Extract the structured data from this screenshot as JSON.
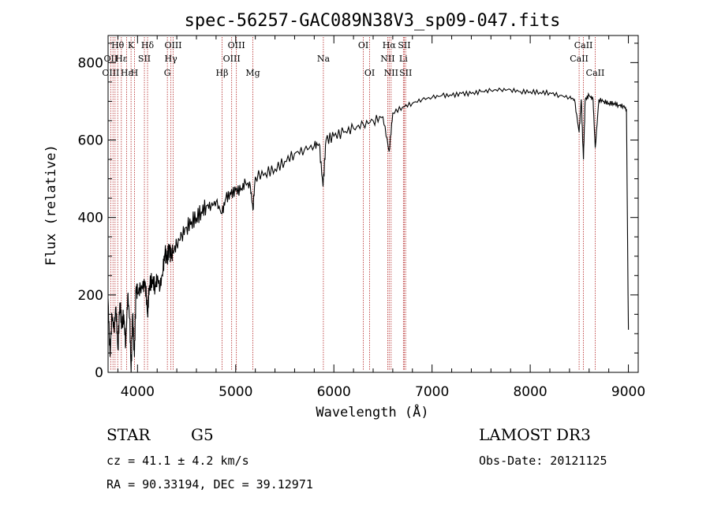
{
  "chart_data": {
    "type": "line",
    "title": "spec-56257-GAC089N38V3_sp09-047.fits",
    "xlabel": "Wavelength (Å)",
    "ylabel": "Flux (relative)",
    "xlim": [
      3700,
      9100
    ],
    "ylim": [
      0,
      870
    ],
    "xticks": [
      4000,
      5000,
      6000,
      7000,
      8000,
      9000
    ],
    "yticks": [
      0,
      200,
      400,
      600,
      800
    ],
    "series": [
      {
        "name": "flux",
        "x": [
          3700,
          3720,
          3740,
          3760,
          3780,
          3800,
          3820,
          3840,
          3860,
          3880,
          3900,
          3920,
          3935,
          3950,
          3968,
          3985,
          4000,
          4030,
          4060,
          4080,
          4102,
          4120,
          4150,
          4180,
          4200,
          4230,
          4260,
          4280,
          4300,
          4320,
          4340,
          4360,
          4400,
          4450,
          4500,
          4550,
          4600,
          4650,
          4700,
          4750,
          4800,
          4861,
          4900,
          4950,
          5000,
          5050,
          5100,
          5150,
          5175,
          5200,
          5300,
          5400,
          5500,
          5600,
          5700,
          5800,
          5850,
          5890,
          5920,
          6000,
          6100,
          6200,
          6300,
          6400,
          6500,
          6563,
          6600,
          6700,
          6800,
          6900,
          7000,
          7100,
          7200,
          7300,
          7400,
          7500,
          7600,
          7700,
          7800,
          7900,
          8000,
          8100,
          8200,
          8300,
          8400,
          8450,
          8498,
          8520,
          8542,
          8560,
          8600,
          8640,
          8662,
          8700,
          8750,
          8800,
          8850,
          8900,
          8950,
          8980,
          9000
        ],
        "values": [
          190,
          40,
          150,
          110,
          170,
          60,
          180,
          120,
          150,
          70,
          200,
          140,
          0,
          150,
          40,
          220,
          205,
          215,
          225,
          230,
          150,
          225,
          240,
          220,
          245,
          220,
          265,
          310,
          290,
          320,
          300,
          310,
          330,
          355,
          375,
          390,
          400,
          415,
          430,
          430,
          440,
          410,
          450,
          460,
          470,
          470,
          490,
          480,
          420,
          505,
          515,
          525,
          545,
          565,
          575,
          585,
          590,
          480,
          600,
          610,
          620,
          630,
          640,
          650,
          660,
          570,
          670,
          685,
          695,
          705,
          710,
          715,
          715,
          720,
          720,
          725,
          728,
          730,
          730,
          725,
          725,
          723,
          722,
          715,
          710,
          705,
          620,
          705,
          550,
          705,
          715,
          705,
          580,
          705,
          700,
          695,
          695,
          690,
          688,
          680,
          110
        ]
      }
    ],
    "line_ids": [
      {
        "label": "Hθ",
        "wl": 3798,
        "row": 1
      },
      {
        "label": "OII",
        "wl": 3727,
        "row": 2
      },
      {
        "label": "OIII",
        "wl": 3727,
        "row": 3
      },
      {
        "label": "K",
        "wl": 3934,
        "row": 1
      },
      {
        "label": "Hε",
        "wl": 3835,
        "row": 2
      },
      {
        "label": "Hε",
        "wl": 3889,
        "row": 3
      },
      {
        "label": "H",
        "wl": 3969,
        "row": 3
      },
      {
        "label": "Hδ",
        "wl": 4102,
        "row": 1
      },
      {
        "label": "SII",
        "wl": 4070,
        "row": 2
      },
      {
        "label": "OIII",
        "wl": 4363,
        "row": 1
      },
      {
        "label": "Hγ",
        "wl": 4340,
        "row": 2
      },
      {
        "label": "G",
        "wl": 4304,
        "row": 3
      },
      {
        "label": "OIII",
        "wl": 5007,
        "row": 1
      },
      {
        "label": "OIII",
        "wl": 4959,
        "row": 2
      },
      {
        "label": "Hβ",
        "wl": 4861,
        "row": 3
      },
      {
        "label": "Mg",
        "wl": 5175,
        "row": 3
      },
      {
        "label": "Na",
        "wl": 5893,
        "row": 2
      },
      {
        "label": "OI",
        "wl": 6300,
        "row": 1
      },
      {
        "label": "OI",
        "wl": 6364,
        "row": 3
      },
      {
        "label": "Hα",
        "wl": 6563,
        "row": 1
      },
      {
        "label": "NII",
        "wl": 6548,
        "row": 2
      },
      {
        "label": "NII",
        "wl": 6583,
        "row": 3
      },
      {
        "label": "SII",
        "wl": 6717,
        "row": 1
      },
      {
        "label": "Li",
        "wl": 6708,
        "row": 2
      },
      {
        "label": "SII",
        "wl": 6731,
        "row": 3
      },
      {
        "label": "CaII",
        "wl": 8542,
        "row": 1
      },
      {
        "label": "CaII",
        "wl": 8498,
        "row": 2
      },
      {
        "label": "CaII",
        "wl": 8662,
        "row": 3
      }
    ],
    "line_wavelengths": [
      3727,
      3750,
      3771,
      3798,
      3835,
      3889,
      3934,
      3969,
      4070,
      4102,
      4304,
      4340,
      4363,
      4861,
      4959,
      5007,
      5175,
      5893,
      6300,
      6364,
      6548,
      6563,
      6583,
      6708,
      6717,
      6731,
      8498,
      8542,
      8662
    ]
  },
  "info": {
    "obj_class": "STAR",
    "subclass": "G5",
    "survey": "LAMOST DR3",
    "cz": "cz = 41.1 ± 4.2 km/s",
    "obs_date": "Obs-Date: 20121125",
    "coords": "RA =  90.33194, DEC =  39.12971"
  }
}
